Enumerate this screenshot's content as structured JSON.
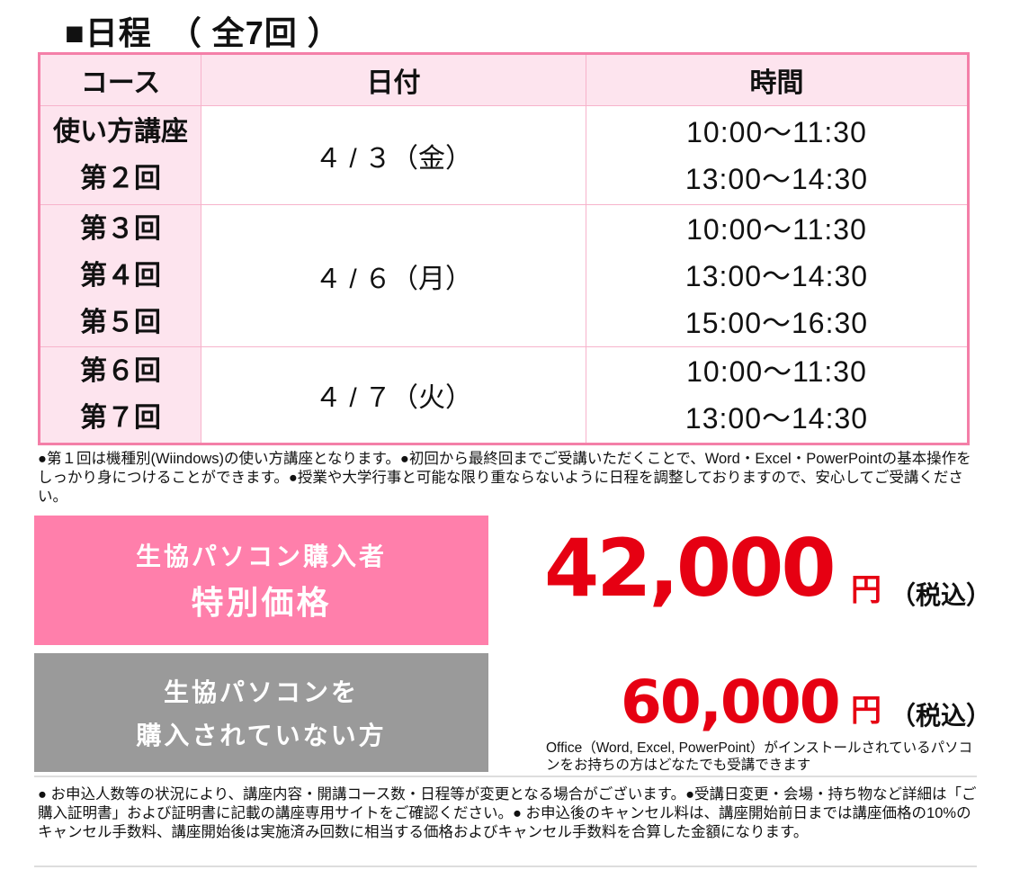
{
  "title": "■日程　（ 全7回 ）",
  "headers": [
    "コース",
    "日付",
    "時間"
  ],
  "rows": [
    {
      "courses": [
        "使い方講座",
        "第２回"
      ],
      "date": "４ / ３（金）",
      "times": [
        "10:00〜11:30",
        "13:00〜14:30"
      ]
    },
    {
      "courses": [
        "第３回",
        "第４回",
        "第５回"
      ],
      "date": "４ / ６（月）",
      "times": [
        "10:00〜11:30",
        "13:00〜14:30",
        "15:00〜16:30"
      ]
    },
    {
      "courses": [
        "第６回",
        "第７回"
      ],
      "date": "４ / ７（火）",
      "times": [
        "10:00〜11:30",
        "13:00〜14:30"
      ]
    }
  ],
  "note1": "●第１回は機種別(Wiindows)の使い方講座となります。●初回から最終回までご受講いただくことで、Word・Excel・PowerPointの基本操作をしっかり身につけることができます。●授業や大学行事と可能な限り重ならないように日程を調整しておりますので、安心してご受講ください。",
  "special": {
    "line1": "生協パソコン購入者",
    "line2": "特別価格",
    "price": "42,000",
    "unit": "円",
    "tax": "（税込）"
  },
  "regular": {
    "line1": "生協パソコンを",
    "line2": "購入されていない方",
    "price": "60,000",
    "unit": "円",
    "tax": "（税込）",
    "sub": "Office（Word, Excel, PowerPoint）がインストールされているパソコンをお持ちの方はどなたでも受講できます"
  },
  "note2": "● お申込人数等の状況により、講座内容・開講コース数・日程等が変更となる場合がございます。●受講日変更・会場・持ち物など詳細は「ご購入証明書」および証明書に記載の講座専用サイトをご確認ください。● お申込後のキャンセル料は、講座開始前日までは講座価格の10%のキャンセル手数料、講座開始後は実施済み回数に相当する価格およびキャンセル手数料を合算した金額になります。",
  "colors": {
    "border": "#f47fa8",
    "header_bg": "#fde4ee",
    "special_bg": "#ff7fab",
    "regular_bg": "#9a9a9a",
    "price": "#e60012"
  }
}
